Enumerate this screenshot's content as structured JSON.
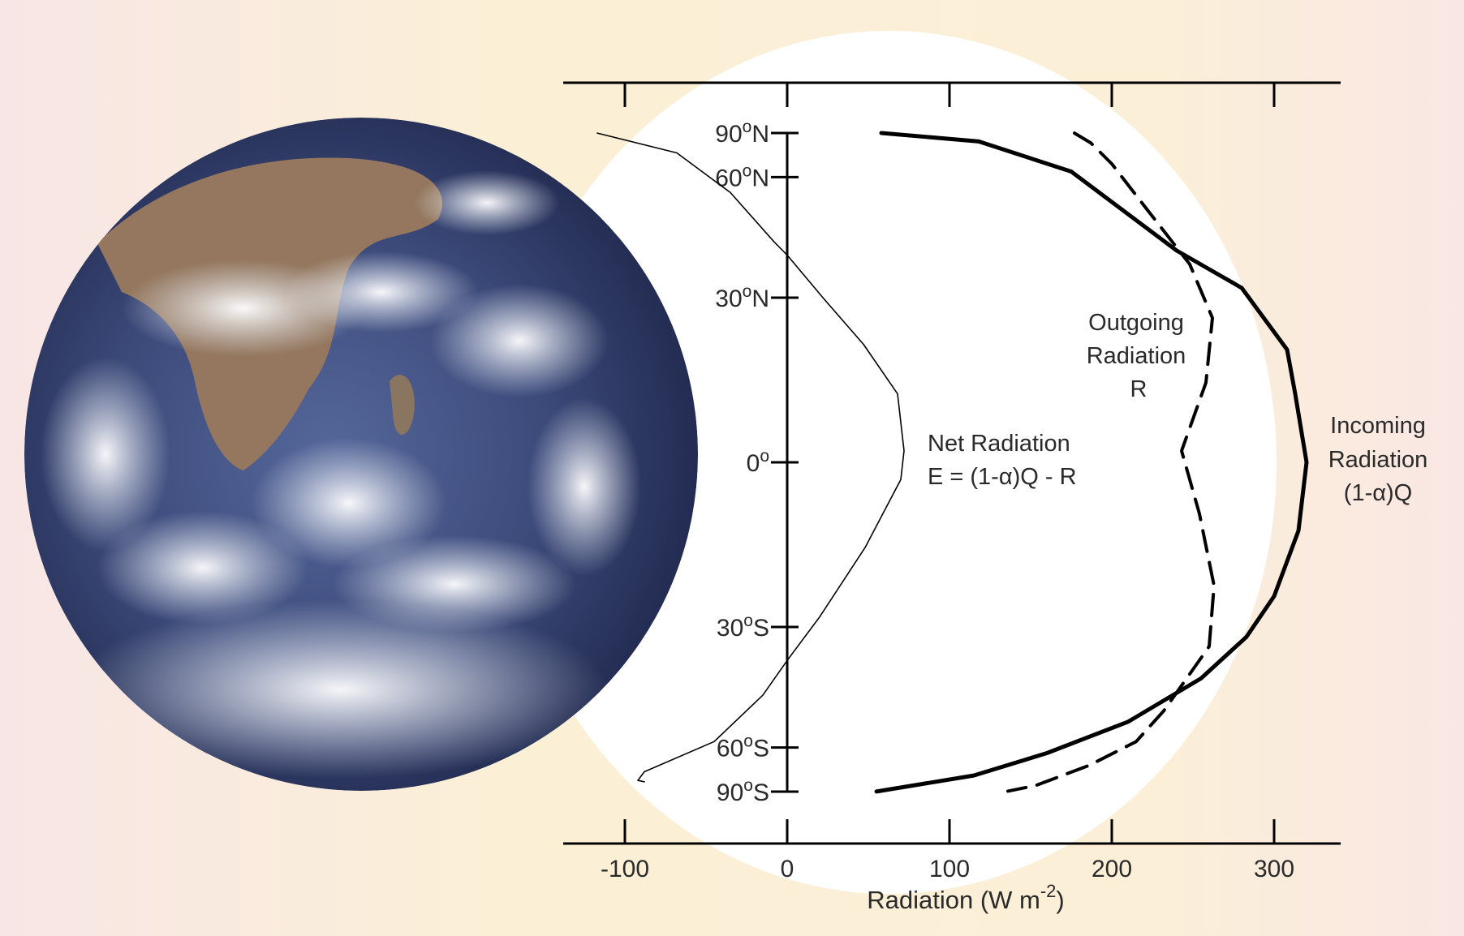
{
  "colors": {
    "background_warm": "#fbf0d6",
    "background_pink": "#f8e6e6",
    "halo": "#ffffff",
    "ink": "#000000",
    "ocean": "#33406e",
    "cloud": "#eef1f6",
    "land": "#9b7d64"
  },
  "chart_data": {
    "type": "line",
    "orientation": "horizontal-values",
    "xlabel_text": "Radiation (W m",
    "xlabel_exponent": "-2",
    "xlabel_close": ")",
    "xlim": [
      -125,
      340
    ],
    "x_ticks": [
      -100,
      0,
      100,
      200,
      300
    ],
    "x_tick_labels": [
      "-100",
      "0",
      "100",
      "200",
      "300"
    ],
    "y_ticks": [
      90,
      60,
      30,
      0,
      -30,
      -60,
      -90
    ],
    "y_tick_labels": [
      {
        "num": "90",
        "deg": "o",
        "hem": "N"
      },
      {
        "num": "60",
        "deg": "o",
        "hem": "N"
      },
      {
        "num": "30",
        "deg": "o",
        "hem": "N"
      },
      {
        "num": "0",
        "deg": "o",
        "hem": ""
      },
      {
        "num": "30",
        "deg": "o",
        "hem": "S"
      },
      {
        "num": "60",
        "deg": "o",
        "hem": "S"
      },
      {
        "num": "90",
        "deg": "o",
        "hem": "S"
      }
    ],
    "y_scale": "sine of latitude",
    "grid": false,
    "series": [
      {
        "name_lines": [
          "Incoming",
          "Radiation",
          "(1-α)Q"
        ],
        "style": "thick-solid",
        "points": [
          [
            58,
            90
          ],
          [
            118,
            77
          ],
          [
            175,
            62
          ],
          [
            240,
            40
          ],
          [
            280,
            32
          ],
          [
            308,
            20
          ],
          [
            313,
            12
          ],
          [
            320,
            0
          ],
          [
            315,
            -12
          ],
          [
            300,
            -24
          ],
          [
            283,
            -32
          ],
          [
            255,
            -41
          ],
          [
            210,
            -52
          ],
          [
            160,
            -62
          ],
          [
            115,
            -72
          ],
          [
            55,
            -89
          ]
        ]
      },
      {
        "name_lines": [
          "Outgoing",
          "Radiation",
          "R"
        ],
        "style": "dashed",
        "points": [
          [
            177,
            89
          ],
          [
            187,
            76
          ],
          [
            200,
            65
          ],
          [
            222,
            50
          ],
          [
            248,
            37
          ],
          [
            262,
            26
          ],
          [
            258,
            14
          ],
          [
            243,
            2
          ],
          [
            254,
            -9
          ],
          [
            263,
            -22
          ],
          [
            260,
            -34
          ],
          [
            232,
            -49
          ],
          [
            215,
            -58
          ],
          [
            186,
            -67
          ],
          [
            153,
            -79
          ],
          [
            136,
            -87
          ]
        ]
      },
      {
        "name_lines": [
          "Net Radiation",
          "E = (1-α)Q - R"
        ],
        "style": "thin-solid",
        "points": [
          [
            -117,
            89
          ],
          [
            -68,
            70
          ],
          [
            -35,
            55
          ],
          [
            -8,
            42
          ],
          [
            0,
            39
          ],
          [
            22,
            30
          ],
          [
            47,
            21
          ],
          [
            68,
            12
          ],
          [
            72,
            2
          ],
          [
            70,
            -3
          ],
          [
            48,
            -15
          ],
          [
            20,
            -28
          ],
          [
            0,
            -37
          ],
          [
            -15,
            -45
          ],
          [
            -45,
            -58
          ],
          [
            -88,
            -70
          ],
          [
            -92,
            -75
          ],
          [
            -88,
            -76
          ]
        ]
      }
    ]
  }
}
